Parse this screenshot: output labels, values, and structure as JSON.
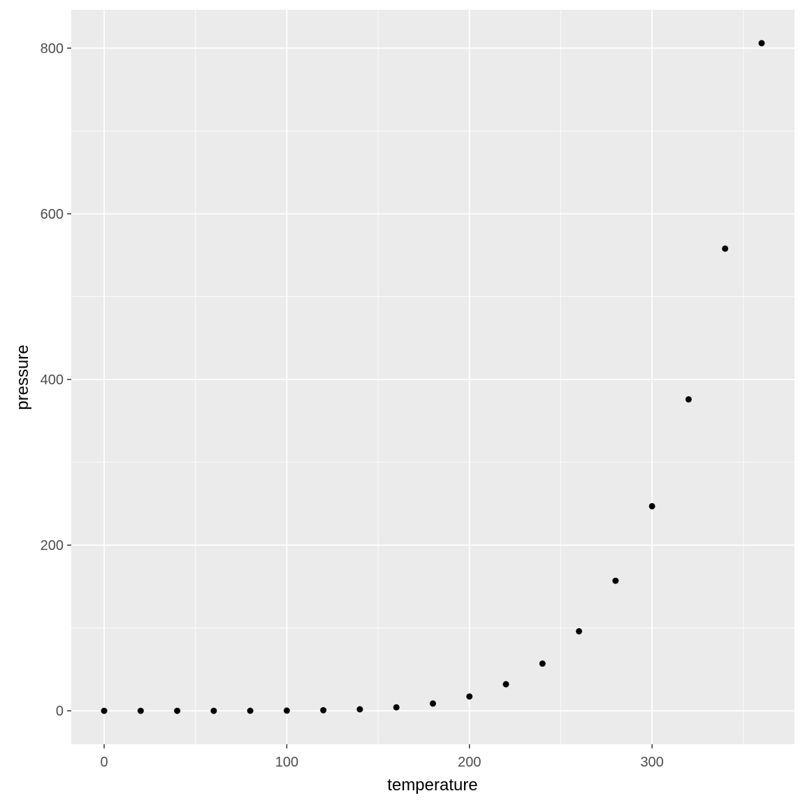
{
  "chart_data": {
    "type": "scatter",
    "x_label": "temperature",
    "y_label": "pressure",
    "x": [
      0,
      20,
      40,
      60,
      80,
      100,
      120,
      140,
      160,
      180,
      200,
      220,
      240,
      260,
      280,
      300,
      320,
      340,
      360
    ],
    "series": [
      {
        "name": "pressure",
        "color": "#000000",
        "values": [
          0.0002,
          0.0012,
          0.006,
          0.03,
          0.09,
          0.27,
          0.75,
          1.85,
          4.2,
          8.8,
          17.3,
          32.1,
          57,
          96,
          157,
          247,
          376,
          558,
          806
        ]
      }
    ],
    "xlim": [
      -18,
      378
    ],
    "ylim": [
      -40.3,
      846.3
    ],
    "xticks": [
      0,
      100,
      200,
      300
    ],
    "yticks": [
      0,
      200,
      400,
      600,
      800
    ],
    "xminorticks": [
      50,
      150,
      250,
      350
    ],
    "yminorticks": [
      100,
      300,
      500,
      700
    ],
    "grid": true,
    "panel_color": "#ebebeb"
  }
}
